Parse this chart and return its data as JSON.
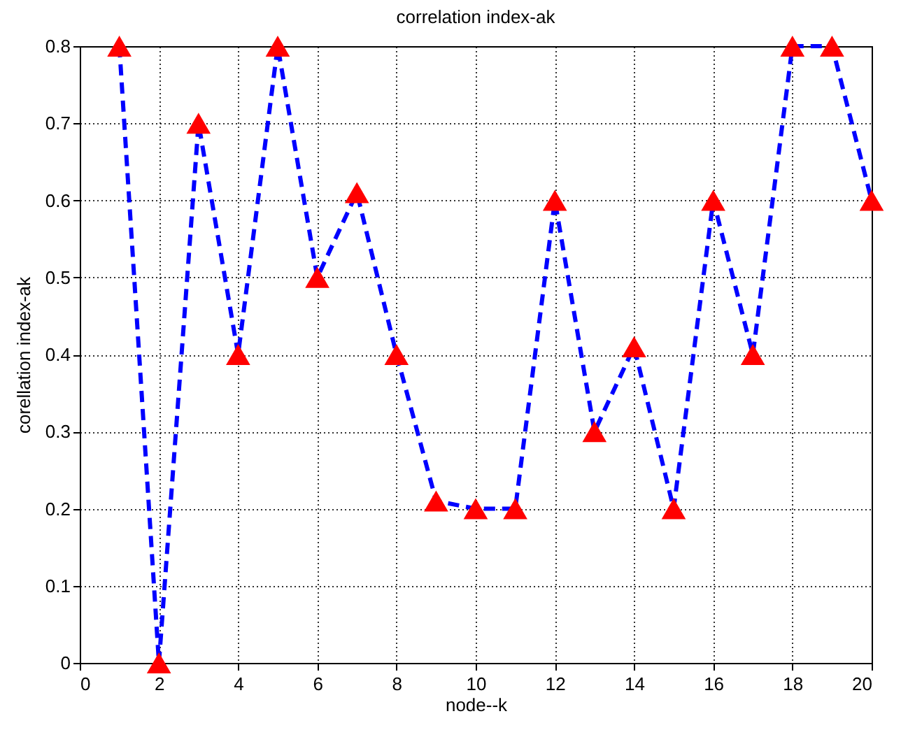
{
  "chart_data": {
    "type": "line",
    "title": "correlation index-ak",
    "xlabel": "node--k",
    "ylabel": "corellation index-ak",
    "x": [
      1,
      2,
      3,
      4,
      5,
      6,
      7,
      8,
      9,
      10,
      11,
      12,
      13,
      14,
      15,
      16,
      17,
      18,
      19,
      20
    ],
    "series": [
      {
        "color": "#0000ff",
        "colors": [
          "#ff0000",
          "#ff0000",
          "#ff0000",
          "#ff0000",
          "#ff0000",
          "#ff0000",
          "#ff0000",
          "#ff0000",
          "#ff0000",
          "#ff0000",
          "#ff0000",
          "#ff0000",
          "#ff0000",
          "#ff0000",
          "#ff0000",
          "#ff0000",
          "#ff0000",
          "#ff0000",
          "#ff0000",
          "#ff0000"
        ],
        "values": [
          0.8,
          0,
          0.7,
          0.4,
          0.8,
          0.5,
          0.61,
          0.4,
          0.21,
          0.2,
          0.2,
          0.6,
          0.3,
          0.41,
          0.2,
          0.6,
          0.4,
          0.8,
          0.8,
          0.6
        ]
      }
    ],
    "xlim": [
      0,
      20
    ],
    "xticks": [
      0,
      2,
      4,
      6,
      8,
      10,
      12,
      14,
      16,
      18,
      20
    ],
    "ylim": [
      0,
      0.8
    ],
    "yticks": [
      0,
      0.1,
      0.2,
      0.3,
      0.4,
      0.5,
      0.6,
      0.7,
      0.8
    ],
    "grid": true,
    "marker": "triangle",
    "line_style": "dashed"
  }
}
